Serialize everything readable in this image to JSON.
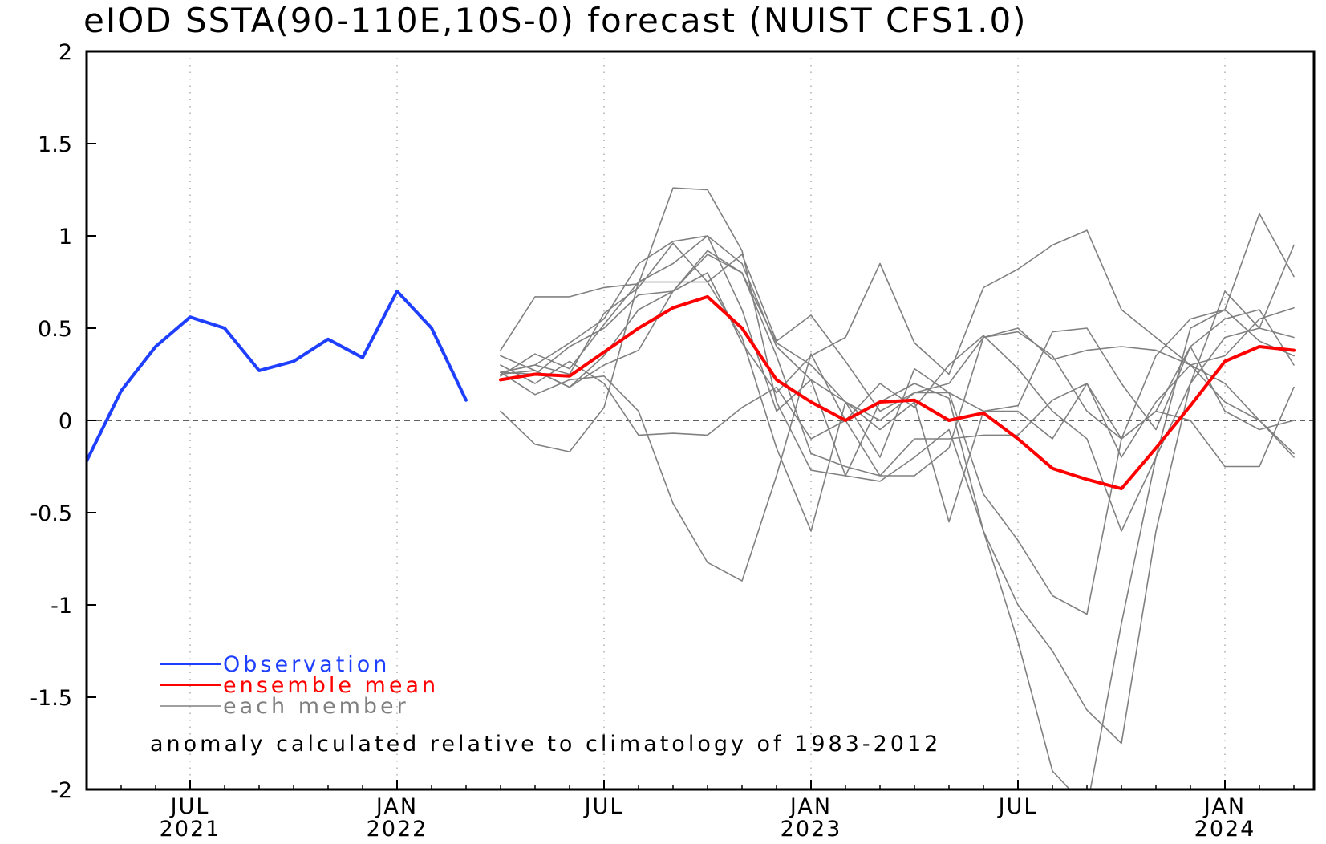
{
  "chart_data": {
    "type": "line",
    "title": "eIOD SSTA(90-110E,10S-0) forecast (NUIST CFS1.0)",
    "ylim": [
      -2,
      2
    ],
    "xlim": [
      "2021-04",
      "2024-03"
    ],
    "yticks": [
      "2",
      "1.5",
      "1",
      "0.5",
      "0",
      "-0.5",
      "-1",
      "-1.5",
      "-2"
    ],
    "yticks_values": [
      2,
      1.5,
      1,
      0.5,
      0,
      -0.5,
      -1,
      -1.5,
      -2
    ],
    "xticks": [
      {
        "date": "2021-07",
        "month": "JUL",
        "year": "2021"
      },
      {
        "date": "2022-01",
        "month": "JAN",
        "year": "2022"
      },
      {
        "date": "2022-07",
        "month": "JUL",
        "year": ""
      },
      {
        "date": "2023-01",
        "month": "JAN",
        "year": "2023"
      },
      {
        "date": "2023-07",
        "month": "JUL",
        "year": ""
      },
      {
        "date": "2024-01",
        "month": "JAN",
        "year": "2024"
      }
    ],
    "grid": true,
    "zero_line": true,
    "legend": [
      {
        "label": "Observation",
        "color": "#1f3fff"
      },
      {
        "label": "ensemble mean",
        "color": "#ff0000"
      },
      {
        "label": "each member",
        "color": "#808080"
      }
    ],
    "note": "anomaly calculated relative to climatology of 1983-2012",
    "series": [
      {
        "name": "Observation",
        "color": "#1f3fff",
        "x": [
          "2021-04",
          "2021-05",
          "2021-06",
          "2021-07",
          "2021-08",
          "2021-09",
          "2021-10",
          "2021-11",
          "2021-12",
          "2022-01",
          "2022-02",
          "2022-03",
          "2022-04"
        ],
        "values": [
          -0.22,
          0.16,
          0.4,
          0.56,
          0.5,
          0.27,
          0.32,
          0.44,
          0.34,
          0.7,
          0.5,
          0.11,
          null
        ]
      },
      {
        "name": "ensemble mean",
        "color": "#ff0000",
        "x": [
          "2022-04",
          "2022-05",
          "2022-06",
          "2022-07",
          "2022-08",
          "2022-09",
          "2022-10",
          "2022-11",
          "2022-12",
          "2023-01",
          "2023-02",
          "2023-03",
          "2023-04",
          "2023-05",
          "2023-06",
          "2023-07",
          "2023-08",
          "2023-09",
          "2023-10",
          "2023-11",
          "2023-12",
          "2024-01",
          "2024-02",
          "2024-03"
        ],
        "values": [
          0.22,
          0.25,
          0.24,
          0.37,
          0.5,
          0.61,
          0.67,
          0.5,
          0.22,
          0.1,
          0.0,
          0.1,
          0.11,
          0.0,
          0.04,
          -0.1,
          -0.26,
          -0.32,
          -0.37,
          -0.15,
          0.08,
          0.32,
          0.4,
          0.38
        ]
      },
      {
        "name": "each member",
        "color": "#808080",
        "x": [
          "2022-04",
          "2022-05",
          "2022-06",
          "2022-07",
          "2022-08",
          "2022-09",
          "2022-10",
          "2022-11",
          "2022-12",
          "2023-01",
          "2023-02",
          "2023-03",
          "2023-04",
          "2023-05",
          "2023-06",
          "2023-07",
          "2023-08",
          "2023-09",
          "2023-10",
          "2023-11",
          "2023-12",
          "2024-01",
          "2024-02",
          "2024-03"
        ],
        "members": [
          [
            0.38,
            0.67,
            0.67,
            0.72,
            0.74,
            1.26,
            1.25,
            0.92,
            0.1,
            -0.27,
            -0.3,
            0.1,
            0.2,
            0.12,
            -0.6,
            -1.2,
            -1.9,
            -2.1,
            -1.1,
            -0.2,
            0.5,
            0.6,
            1.12,
            0.78
          ],
          [
            0.26,
            0.3,
            0.42,
            0.55,
            0.85,
            0.97,
            1.0,
            0.85,
            0.4,
            0.22,
            -0.3,
            -0.33,
            -0.2,
            -0.05,
            -0.6,
            -1.0,
            -1.25,
            -1.57,
            -1.75,
            -0.6,
            0.2,
            0.7,
            0.5,
            0.95
          ],
          [
            0.24,
            0.36,
            0.28,
            0.52,
            0.75,
            0.85,
            1.0,
            0.6,
            0.05,
            0.22,
            0.1,
            -0.05,
            0.1,
            -0.55,
            0.05,
            0.08,
            0.48,
            0.5,
            0.2,
            -0.05,
            0.4,
            0.55,
            0.6,
            0.3
          ],
          [
            0.25,
            0.27,
            0.18,
            0.35,
            0.6,
            0.7,
            0.9,
            0.8,
            0.42,
            0.3,
            0.1,
            0.0,
            0.15,
            0.2,
            0.45,
            0.5,
            0.33,
            0.38,
            0.4,
            0.38,
            0.3,
            0.1,
            0.0,
            -0.18
          ],
          [
            0.05,
            -0.13,
            -0.17,
            0.07,
            0.75,
            0.75,
            0.75,
            0.45,
            -0.15,
            -0.6,
            0.1,
            -0.2,
            0.28,
            0.15,
            -0.4,
            -0.65,
            -0.95,
            -1.05,
            -0.1,
            0.35,
            0.55,
            0.6,
            0.43,
            0.35
          ],
          [
            0.35,
            0.27,
            0.18,
            0.3,
            0.38,
            0.7,
            0.8,
            0.42,
            0.15,
            0.35,
            0.45,
            0.85,
            0.42,
            0.25,
            0.72,
            0.82,
            0.95,
            1.03,
            0.6,
            0.45,
            0.3,
            0.2,
            0.0,
            -0.2
          ],
          [
            0.26,
            0.14,
            0.22,
            0.24,
            0.05,
            -0.45,
            -0.77,
            -0.87,
            -0.3,
            0.36,
            0.0,
            -0.3,
            -0.3,
            -0.15,
            0.45,
            0.48,
            0.35,
            0.05,
            -0.1,
            0.05,
            0.4,
            0.05,
            -0.05,
            0.0
          ],
          [
            0.26,
            0.25,
            0.4,
            0.5,
            0.68,
            0.7,
            0.92,
            0.8,
            0.35,
            -0.18,
            -0.25,
            -0.3,
            -0.1,
            -0.1,
            -0.08,
            -0.08,
            0.11,
            0.2,
            -0.1,
            0.05,
            0.0,
            -0.25,
            -0.25,
            0.18
          ],
          [
            0.26,
            0.3,
            0.25,
            0.58,
            0.72,
            0.96,
            0.75,
            0.9,
            0.43,
            0.57,
            0.32,
            0.05,
            0.15,
            0.15,
            0.05,
            0.05,
            -0.1,
            0.2,
            -0.2,
            0.1,
            0.3,
            0.35,
            0.55,
            0.61
          ],
          [
            0.3,
            0.2,
            0.32,
            0.2,
            -0.08,
            -0.07,
            -0.08,
            0.07,
            0.18,
            -0.1,
            0.0,
            0.2,
            0.07,
            0.3,
            0.46,
            0.28,
            0.05,
            -0.1,
            -0.6,
            -0.2,
            0.2,
            0.45,
            0.5,
            0.45
          ]
        ]
      }
    ]
  }
}
